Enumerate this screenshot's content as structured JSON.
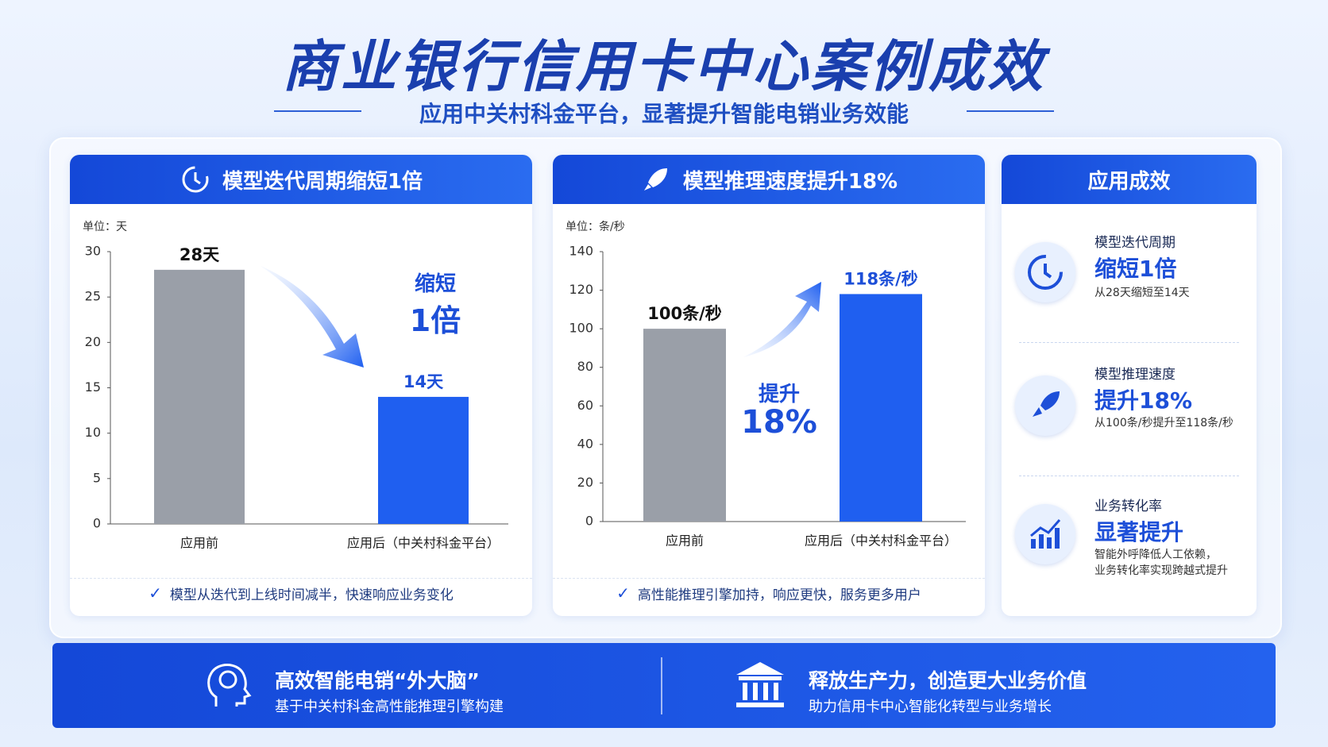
{
  "header": {
    "title": "商业银行信用卡中心案例成效",
    "subtitle": "应用中关村科金平台，显著提升智能电销业务效能"
  },
  "chart_data": [
    {
      "type": "bar",
      "title": "模型迭代周期缩短1倍",
      "unit": "单位：天",
      "categories": [
        "应用前",
        "应用后（中关村科金平台）"
      ],
      "values": [
        28,
        14
      ],
      "value_labels": [
        "28天",
        "14天"
      ],
      "colors": [
        "#9a9fa8",
        "#1f5ff0"
      ],
      "ylim": [
        0,
        30
      ],
      "yticks": [
        0,
        5,
        10,
        15,
        20,
        25,
        30
      ],
      "annotation": {
        "label": "缩短",
        "value": "1倍"
      },
      "note": "模型从迭代到上线时间减半，快速响应业务变化"
    },
    {
      "type": "bar",
      "title": "模型推理速度提升18%",
      "unit": "单位：条/秒",
      "categories": [
        "应用前",
        "应用后（中关村科金平台）"
      ],
      "values": [
        100,
        118
      ],
      "value_labels": [
        "100条/秒",
        "118条/秒"
      ],
      "colors": [
        "#9a9fa8",
        "#1f5ff0"
      ],
      "ylim": [
        0,
        140
      ],
      "yticks": [
        0,
        20,
        40,
        60,
        80,
        100,
        120,
        140
      ],
      "annotation": {
        "label": "提升",
        "value": "18%"
      },
      "note": "高性能推理引擎加持，响应更快，服务更多用户"
    }
  ],
  "results": {
    "title": "应用成效",
    "items": [
      {
        "label": "模型迭代周期",
        "highlight": "缩短1倍",
        "desc": [
          "从28天缩短至14天"
        ]
      },
      {
        "label": "模型推理速度",
        "highlight": "提升18%",
        "desc": [
          "从100条/秒提升至118条/秒"
        ]
      },
      {
        "label": "业务转化率",
        "highlight": "显著提升",
        "desc": [
          "智能外呼降低人工依赖，",
          "业务转化率实现跨越式提升"
        ]
      }
    ]
  },
  "footer": [
    {
      "title": "高效智能电销“外大脑”",
      "subtitle": "基于中关村科金高性能推理引擎构建"
    },
    {
      "title": "释放生产力，创造更大业务价值",
      "subtitle": "助力信用卡中心智能化转型与业务增长"
    }
  ]
}
